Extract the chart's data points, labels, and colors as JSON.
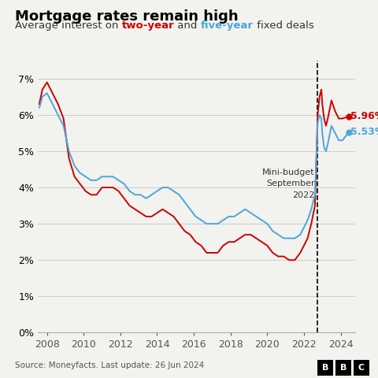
{
  "title": "Mortgage rates remain high",
  "two_year_color": "#cc0000",
  "five_year_color": "#4da6d9",
  "background_color": "#f2f2ee",
  "annotation_text": "Mini-budget\nSeptember\n2022",
  "dashed_line_x": 2022.75,
  "end_label_two": "5.96%",
  "end_label_five": "5.53%",
  "source_text": "Source: Moneyfacts. Last update: 26 Jun 2024",
  "xlim": [
    2007.5,
    2024.8
  ],
  "ylim": [
    0,
    0.075
  ],
  "yticks": [
    0,
    0.01,
    0.02,
    0.03,
    0.04,
    0.05,
    0.06,
    0.07
  ],
  "ytick_labels": [
    "0%",
    "1%",
    "2%",
    "3%",
    "4%",
    "5%",
    "6%",
    "7%"
  ],
  "xticks": [
    2008,
    2010,
    2012,
    2014,
    2016,
    2018,
    2020,
    2022,
    2024
  ],
  "two_year_data": [
    [
      2007.58,
      0.063
    ],
    [
      2007.75,
      0.067
    ],
    [
      2008.0,
      0.069
    ],
    [
      2008.3,
      0.066
    ],
    [
      2008.6,
      0.063
    ],
    [
      2008.9,
      0.059
    ],
    [
      2009.2,
      0.048
    ],
    [
      2009.5,
      0.043
    ],
    [
      2009.8,
      0.041
    ],
    [
      2010.1,
      0.039
    ],
    [
      2010.4,
      0.038
    ],
    [
      2010.7,
      0.038
    ],
    [
      2011.0,
      0.04
    ],
    [
      2011.3,
      0.04
    ],
    [
      2011.6,
      0.04
    ],
    [
      2011.9,
      0.039
    ],
    [
      2012.2,
      0.037
    ],
    [
      2012.5,
      0.035
    ],
    [
      2012.8,
      0.034
    ],
    [
      2013.1,
      0.033
    ],
    [
      2013.4,
      0.032
    ],
    [
      2013.7,
      0.032
    ],
    [
      2014.0,
      0.033
    ],
    [
      2014.3,
      0.034
    ],
    [
      2014.6,
      0.033
    ],
    [
      2014.9,
      0.032
    ],
    [
      2015.2,
      0.03
    ],
    [
      2015.5,
      0.028
    ],
    [
      2015.8,
      0.027
    ],
    [
      2016.1,
      0.025
    ],
    [
      2016.4,
      0.024
    ],
    [
      2016.7,
      0.022
    ],
    [
      2017.0,
      0.022
    ],
    [
      2017.3,
      0.022
    ],
    [
      2017.6,
      0.024
    ],
    [
      2017.9,
      0.025
    ],
    [
      2018.2,
      0.025
    ],
    [
      2018.5,
      0.026
    ],
    [
      2018.8,
      0.027
    ],
    [
      2019.1,
      0.027
    ],
    [
      2019.4,
      0.026
    ],
    [
      2019.7,
      0.025
    ],
    [
      2020.0,
      0.024
    ],
    [
      2020.3,
      0.022
    ],
    [
      2020.6,
      0.021
    ],
    [
      2020.9,
      0.021
    ],
    [
      2021.2,
      0.02
    ],
    [
      2021.5,
      0.02
    ],
    [
      2021.8,
      0.022
    ],
    [
      2022.0,
      0.024
    ],
    [
      2022.2,
      0.026
    ],
    [
      2022.4,
      0.03
    ],
    [
      2022.6,
      0.035
    ],
    [
      2022.75,
      0.06
    ],
    [
      2022.85,
      0.065
    ],
    [
      2022.95,
      0.067
    ],
    [
      2023.0,
      0.063
    ],
    [
      2023.1,
      0.059
    ],
    [
      2023.2,
      0.057
    ],
    [
      2023.3,
      0.059
    ],
    [
      2023.5,
      0.064
    ],
    [
      2023.7,
      0.061
    ],
    [
      2023.9,
      0.059
    ],
    [
      2024.1,
      0.059
    ],
    [
      2024.45,
      0.0596
    ]
  ],
  "five_year_data": [
    [
      2007.58,
      0.062
    ],
    [
      2007.75,
      0.065
    ],
    [
      2008.0,
      0.066
    ],
    [
      2008.3,
      0.063
    ],
    [
      2008.6,
      0.06
    ],
    [
      2008.9,
      0.057
    ],
    [
      2009.2,
      0.05
    ],
    [
      2009.5,
      0.046
    ],
    [
      2009.8,
      0.044
    ],
    [
      2010.1,
      0.043
    ],
    [
      2010.4,
      0.042
    ],
    [
      2010.7,
      0.042
    ],
    [
      2011.0,
      0.043
    ],
    [
      2011.3,
      0.043
    ],
    [
      2011.6,
      0.043
    ],
    [
      2011.9,
      0.042
    ],
    [
      2012.2,
      0.041
    ],
    [
      2012.5,
      0.039
    ],
    [
      2012.8,
      0.038
    ],
    [
      2013.1,
      0.038
    ],
    [
      2013.4,
      0.037
    ],
    [
      2013.7,
      0.038
    ],
    [
      2014.0,
      0.039
    ],
    [
      2014.3,
      0.04
    ],
    [
      2014.6,
      0.04
    ],
    [
      2014.9,
      0.039
    ],
    [
      2015.2,
      0.038
    ],
    [
      2015.5,
      0.036
    ],
    [
      2015.8,
      0.034
    ],
    [
      2016.1,
      0.032
    ],
    [
      2016.4,
      0.031
    ],
    [
      2016.7,
      0.03
    ],
    [
      2017.0,
      0.03
    ],
    [
      2017.3,
      0.03
    ],
    [
      2017.6,
      0.031
    ],
    [
      2017.9,
      0.032
    ],
    [
      2018.2,
      0.032
    ],
    [
      2018.5,
      0.033
    ],
    [
      2018.8,
      0.034
    ],
    [
      2019.1,
      0.033
    ],
    [
      2019.4,
      0.032
    ],
    [
      2019.7,
      0.031
    ],
    [
      2020.0,
      0.03
    ],
    [
      2020.3,
      0.028
    ],
    [
      2020.6,
      0.027
    ],
    [
      2020.9,
      0.026
    ],
    [
      2021.2,
      0.026
    ],
    [
      2021.5,
      0.026
    ],
    [
      2021.8,
      0.027
    ],
    [
      2022.0,
      0.029
    ],
    [
      2022.2,
      0.031
    ],
    [
      2022.4,
      0.034
    ],
    [
      2022.6,
      0.038
    ],
    [
      2022.75,
      0.058
    ],
    [
      2022.85,
      0.06
    ],
    [
      2022.95,
      0.059
    ],
    [
      2023.0,
      0.055
    ],
    [
      2023.1,
      0.051
    ],
    [
      2023.2,
      0.05
    ],
    [
      2023.3,
      0.052
    ],
    [
      2023.5,
      0.057
    ],
    [
      2023.7,
      0.055
    ],
    [
      2023.9,
      0.053
    ],
    [
      2024.1,
      0.053
    ],
    [
      2024.45,
      0.0553
    ]
  ]
}
